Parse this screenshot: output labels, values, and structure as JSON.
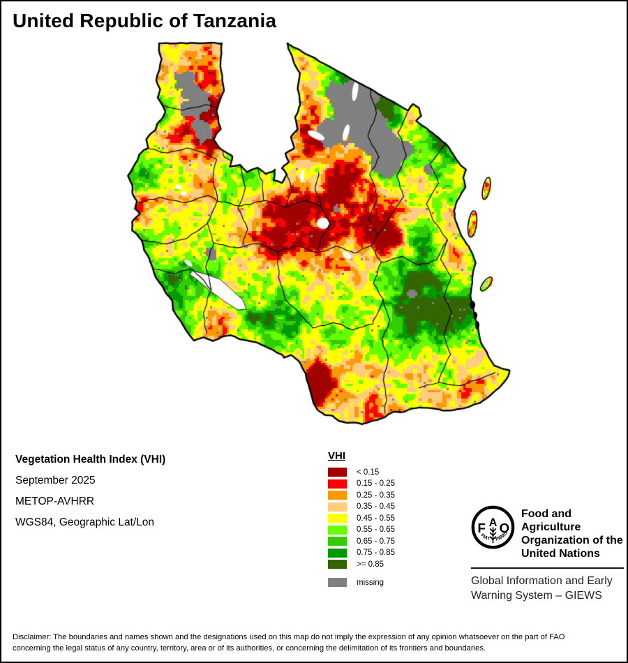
{
  "title": "United Republic of Tanzania",
  "info": {
    "line1": "Vegetation Health Index (VHI)",
    "line2": "September 2025",
    "line3": "METOP-AVHRR",
    "line4": "WGS84, Geographic Lat/Lon"
  },
  "legend": {
    "title": "VHI",
    "items": [
      {
        "label": "< 0.15",
        "color": "#A00000"
      },
      {
        "label": "0.15 - 0.25",
        "color": "#FF0000"
      },
      {
        "label": "0.25 - 0.35",
        "color": "#FF9900"
      },
      {
        "label": "0.35 - 0.45",
        "color": "#FFCC80"
      },
      {
        "label": "0.45 - 0.55",
        "color": "#FFFF00"
      },
      {
        "label": "0.55 - 0.65",
        "color": "#66FF00"
      },
      {
        "label": "0.65 - 0.75",
        "color": "#33CC00"
      },
      {
        "label": "0.75 - 0.85",
        "color": "#009900"
      },
      {
        "label": ">= 0.85",
        "color": "#336600"
      }
    ],
    "missing": {
      "label": "missing",
      "color": "#808080"
    }
  },
  "fao": {
    "logo_letters": [
      "F",
      "A",
      "O"
    ],
    "logo_motto_left": "FIAT",
    "logo_motto_right": "PANIS",
    "org_lines": [
      "Food and Agriculture",
      "Organization of the",
      "United Nations"
    ],
    "giews_lines": [
      "Global Information and Early",
      "Warning System – GIEWS"
    ]
  },
  "disclaimer": {
    "line1": "Disclaimer: The boundaries and names shown and the designations used on this map do not imply the expression of any opinion whatsoever on the part of FAO",
    "line2": "concerning the legal status of any country, territory, area or of its authorities, or concerning the delimitation of its frontiers and boundaries."
  },
  "map": {
    "palette": [
      "#A00000",
      "#FF0000",
      "#FF9900",
      "#FFCC80",
      "#FFFF00",
      "#66FF00",
      "#33CC00",
      "#009900",
      "#336600"
    ],
    "missing_color": "#808080",
    "thresholds": [
      0.1,
      0.19,
      0.3,
      0.4,
      0.53,
      0.65,
      0.77,
      0.875
    ],
    "outline": [
      [
        228,
        62
      ],
      [
        318,
        62
      ],
      [
        316,
        95
      ],
      [
        321,
        130
      ],
      [
        310,
        160
      ],
      [
        316,
        185
      ],
      [
        305,
        200
      ],
      [
        318,
        215
      ],
      [
        333,
        224
      ],
      [
        329,
        239
      ],
      [
        344,
        237
      ],
      [
        354,
        247
      ],
      [
        369,
        240
      ],
      [
        381,
        250
      ],
      [
        394,
        243
      ],
      [
        392,
        258
      ],
      [
        404,
        262
      ],
      [
        411,
        250
      ],
      [
        404,
        241
      ],
      [
        414,
        232
      ],
      [
        409,
        220
      ],
      [
        421,
        212
      ],
      [
        417,
        196
      ],
      [
        427,
        185
      ],
      [
        423,
        168
      ],
      [
        431,
        150
      ],
      [
        426,
        128
      ],
      [
        429,
        105
      ],
      [
        421,
        88
      ],
      [
        414,
        70
      ],
      [
        412,
        62
      ],
      [
        585,
        158
      ],
      [
        592,
        150
      ],
      [
        600,
        155
      ],
      [
        603,
        166
      ],
      [
        597,
        173
      ],
      [
        638,
        205
      ],
      [
        660,
        237
      ],
      [
        668,
        243
      ],
      [
        664,
        255
      ],
      [
        667,
        268
      ],
      [
        655,
        288
      ],
      [
        650,
        302
      ],
      [
        653,
        316
      ],
      [
        661,
        337
      ],
      [
        669,
        350
      ],
      [
        676,
        360
      ],
      [
        681,
        377
      ],
      [
        678,
        392
      ],
      [
        676,
        408
      ],
      [
        674,
        423
      ],
      [
        678,
        440
      ],
      [
        682,
        458
      ],
      [
        685,
        472
      ],
      [
        689,
        490
      ],
      [
        697,
        505
      ],
      [
        703,
        515
      ],
      [
        708,
        524
      ],
      [
        720,
        529
      ],
      [
        730,
        531
      ],
      [
        728,
        538
      ],
      [
        722,
        548
      ],
      [
        715,
        556
      ],
      [
        706,
        563
      ],
      [
        697,
        571
      ],
      [
        688,
        577
      ],
      [
        676,
        581
      ],
      [
        660,
        586
      ],
      [
        643,
        589
      ],
      [
        630,
        587
      ],
      [
        615,
        585
      ],
      [
        601,
        584
      ],
      [
        590,
        586
      ],
      [
        578,
        590
      ],
      [
        565,
        590
      ],
      [
        552,
        597
      ],
      [
        540,
        602
      ],
      [
        530,
        604
      ],
      [
        519,
        608
      ],
      [
        508,
        606
      ],
      [
        497,
        606
      ],
      [
        486,
        604
      ],
      [
        477,
        596
      ],
      [
        465,
        594
      ],
      [
        455,
        587
      ],
      [
        449,
        577
      ],
      [
        446,
        565
      ],
      [
        443,
        553
      ],
      [
        439,
        540
      ],
      [
        434,
        527
      ],
      [
        427,
        517
      ],
      [
        417,
        509
      ],
      [
        407,
        513
      ],
      [
        403,
        508
      ],
      [
        394,
        503
      ],
      [
        383,
        497
      ],
      [
        370,
        492
      ],
      [
        358,
        489
      ],
      [
        344,
        486
      ],
      [
        330,
        480
      ],
      [
        318,
        483
      ],
      [
        305,
        489
      ],
      [
        292,
        484
      ],
      [
        278,
        488
      ],
      [
        272,
        480
      ],
      [
        266,
        472
      ],
      [
        260,
        463
      ],
      [
        254,
        453
      ],
      [
        248,
        444
      ],
      [
        247,
        432
      ],
      [
        240,
        422
      ],
      [
        234,
        412
      ],
      [
        224,
        398
      ],
      [
        219,
        385
      ],
      [
        214,
        370
      ],
      [
        206,
        358
      ],
      [
        203,
        344
      ],
      [
        196,
        335
      ],
      [
        190,
        330
      ],
      [
        189,
        318
      ],
      [
        195,
        311
      ],
      [
        200,
        306
      ],
      [
        193,
        299
      ],
      [
        196,
        288
      ],
      [
        190,
        277
      ],
      [
        189,
        265
      ],
      [
        184,
        252
      ],
      [
        190,
        240
      ],
      [
        196,
        230
      ],
      [
        200,
        222
      ],
      [
        206,
        215
      ],
      [
        212,
        212
      ],
      [
        210,
        200
      ],
      [
        216,
        192
      ],
      [
        222,
        186
      ],
      [
        225,
        178
      ],
      [
        232,
        170
      ],
      [
        237,
        160
      ],
      [
        232,
        150
      ],
      [
        226,
        140
      ],
      [
        229,
        128
      ],
      [
        224,
        115
      ],
      [
        228,
        100
      ],
      [
        231,
        85
      ],
      [
        228,
        72
      ]
    ],
    "inner_boundaries": [
      [
        [
          230,
          150
        ],
        [
          262,
          158
        ],
        [
          295,
          150
        ],
        [
          316,
          156
        ]
      ],
      [
        [
          312,
          195
        ],
        [
          322,
          225
        ],
        [
          336,
          236
        ]
      ],
      [
        [
          212,
          212
        ],
        [
          240,
          220
        ],
        [
          268,
          212
        ],
        [
          296,
          220
        ],
        [
          310,
          228
        ]
      ],
      [
        [
          310,
          228
        ],
        [
          305,
          255
        ],
        [
          312,
          288
        ],
        [
          298,
          318
        ],
        [
          306,
          348
        ],
        [
          295,
          382
        ],
        [
          303,
          415
        ],
        [
          291,
          448
        ],
        [
          296,
          478
        ]
      ],
      [
        [
          196,
          290
        ],
        [
          232,
          283
        ],
        [
          266,
          291
        ],
        [
          298,
          280
        ],
        [
          312,
          288
        ]
      ],
      [
        [
          203,
          344
        ],
        [
          238,
          350
        ],
        [
          268,
          342
        ],
        [
          298,
          318
        ]
      ],
      [
        [
          219,
          385
        ],
        [
          248,
          392
        ],
        [
          275,
          385
        ],
        [
          303,
          415
        ]
      ],
      [
        [
          344,
          237
        ],
        [
          352,
          268
        ],
        [
          342,
          298
        ],
        [
          354,
          328
        ],
        [
          348,
          352
        ]
      ],
      [
        [
          312,
          288
        ],
        [
          345,
          295
        ],
        [
          378,
          287
        ],
        [
          410,
          296
        ],
        [
          438,
          288
        ],
        [
          460,
          296
        ]
      ],
      [
        [
          411,
          250
        ],
        [
          418,
          272
        ],
        [
          410,
          296
        ]
      ],
      [
        [
          457,
          247
        ],
        [
          452,
          272
        ],
        [
          460,
          296
        ]
      ],
      [
        [
          369,
          242
        ],
        [
          376,
          264
        ],
        [
          378,
          287
        ]
      ],
      [
        [
          306,
          348
        ],
        [
          338,
          356
        ],
        [
          368,
          348
        ],
        [
          398,
          360
        ],
        [
          428,
          352
        ],
        [
          455,
          362
        ],
        [
          482,
          354
        ],
        [
          508,
          362
        ],
        [
          532,
          352
        ]
      ],
      [
        [
          460,
          296
        ],
        [
          472,
          320
        ],
        [
          461,
          340
        ],
        [
          455,
          362
        ]
      ],
      [
        [
          530,
          250
        ],
        [
          541,
          284
        ],
        [
          529,
          314
        ],
        [
          541,
          338
        ],
        [
          532,
          352
        ],
        [
          546,
          376
        ],
        [
          536,
          406
        ],
        [
          549,
          430
        ]
      ],
      [
        [
          530,
          128
        ],
        [
          539,
          162
        ],
        [
          527,
          195
        ],
        [
          544,
          225
        ],
        [
          530,
          250
        ]
      ],
      [
        [
          585,
          160
        ],
        [
          571,
          190
        ],
        [
          583,
          222
        ],
        [
          569,
          252
        ],
        [
          578,
          282
        ],
        [
          560,
          310
        ],
        [
          541,
          338
        ]
      ],
      [
        [
          638,
          207
        ],
        [
          616,
          234
        ],
        [
          629,
          262
        ],
        [
          612,
          292
        ],
        [
          622,
          318
        ]
      ],
      [
        [
          622,
          318
        ],
        [
          641,
          344
        ],
        [
          631,
          372
        ],
        [
          646,
          396
        ],
        [
          636,
          424
        ],
        [
          648,
          448
        ]
      ],
      [
        [
          546,
          376
        ],
        [
          576,
          368
        ],
        [
          602,
          380
        ],
        [
          626,
          372
        ],
        [
          641,
          344
        ]
      ],
      [
        [
          549,
          430
        ],
        [
          559,
          458
        ],
        [
          547,
          486
        ],
        [
          557,
          514
        ],
        [
          549,
          544
        ],
        [
          553,
          572
        ],
        [
          552,
          592
        ]
      ],
      [
        [
          448,
          470
        ],
        [
          478,
          462
        ],
        [
          506,
          472
        ],
        [
          534,
          464
        ],
        [
          549,
          430
        ]
      ],
      [
        [
          398,
          360
        ],
        [
          400,
          398
        ],
        [
          408,
          428
        ],
        [
          430,
          450
        ],
        [
          448,
          470
        ]
      ],
      [
        [
          600,
          556
        ],
        [
          629,
          548
        ],
        [
          659,
          552
        ],
        [
          688,
          542
        ],
        [
          710,
          534
        ]
      ],
      [
        [
          648,
          448
        ],
        [
          636,
          478
        ],
        [
          646,
          508
        ],
        [
          632,
          534
        ],
        [
          629,
          548
        ]
      ]
    ],
    "lakes_ellipses": [
      [
        509,
        130,
        4,
        15,
        8
      ],
      [
        496,
        190,
        4,
        12,
        15
      ],
      [
        453,
        194,
        13,
        5,
        25
      ],
      [
        433,
        252,
        3,
        9,
        5
      ],
      [
        463,
        320,
        9,
        8,
        0
      ],
      [
        497,
        366,
        7,
        4,
        35
      ],
      [
        256,
        268,
        6,
        3,
        20
      ],
      [
        263,
        277,
        4,
        3,
        0
      ],
      [
        270,
        377,
        7,
        3,
        40
      ]
    ],
    "lake_polygons": [
      [
        [
          276,
          388
        ],
        [
          295,
          393
        ],
        [
          315,
          400
        ],
        [
          332,
          415
        ],
        [
          348,
          430
        ],
        [
          353,
          443
        ],
        [
          341,
          444
        ],
        [
          322,
          432
        ],
        [
          303,
          418
        ],
        [
          284,
          402
        ],
        [
          272,
          393
        ]
      ]
    ],
    "islands": [
      [
        697,
        270,
        5,
        16,
        12
      ],
      [
        677,
        321,
        6,
        19,
        8
      ],
      [
        697,
        407,
        5,
        12,
        38
      ]
    ],
    "delta_marks": [
      [
        677,
        437,
        4,
        6
      ],
      [
        681,
        452,
        3,
        5
      ],
      [
        684,
        466,
        3,
        6
      ]
    ],
    "missing_blobs": [
      [
        505,
        165,
        40
      ],
      [
        543,
        205,
        32
      ],
      [
        468,
        196,
        20
      ],
      [
        524,
        128,
        24
      ],
      [
        556,
        237,
        20
      ],
      [
        584,
        214,
        14
      ],
      [
        282,
        152,
        30
      ],
      [
        266,
        112,
        18
      ],
      [
        292,
        192,
        16
      ],
      [
        478,
        132,
        14
      ],
      [
        614,
        243,
        11
      ],
      [
        302,
        365,
        13
      ],
      [
        560,
        130,
        13
      ],
      [
        590,
        420,
        10
      ],
      [
        480,
        298,
        9
      ]
    ],
    "bias_bumps": [
      [
        580,
        148,
        85,
        0.34
      ],
      [
        505,
        98,
        45,
        0.22
      ],
      [
        360,
        245,
        42,
        0.16
      ],
      [
        300,
        398,
        55,
        0.2
      ],
      [
        252,
        472,
        48,
        0.18
      ],
      [
        458,
        452,
        45,
        0.22
      ],
      [
        590,
        415,
        65,
        0.28
      ],
      [
        608,
        468,
        55,
        0.2
      ],
      [
        662,
        425,
        35,
        0.16
      ],
      [
        630,
        228,
        32,
        0.14
      ],
      [
        232,
        330,
        30,
        0.12
      ],
      [
        680,
        332,
        25,
        0.12
      ],
      [
        408,
        458,
        30,
        0.15
      ],
      [
        545,
        120,
        30,
        0.15
      ],
      [
        298,
        178,
        45,
        -0.24
      ],
      [
        222,
        300,
        40,
        -0.22
      ],
      [
        430,
        200,
        40,
        -0.14
      ],
      [
        478,
        310,
        62,
        -0.3
      ],
      [
        556,
        328,
        48,
        -0.26
      ],
      [
        392,
        330,
        40,
        -0.2
      ],
      [
        462,
        550,
        55,
        -0.28
      ],
      [
        672,
        555,
        45,
        -0.3
      ],
      [
        352,
        505,
        38,
        -0.14
      ],
      [
        315,
        455,
        25,
        -0.2
      ],
      [
        588,
        168,
        17,
        -0.38
      ],
      [
        450,
        108,
        35,
        -0.16
      ],
      [
        655,
        390,
        22,
        -0.15
      ],
      [
        480,
        335,
        150,
        -0.1
      ],
      [
        530,
        560,
        120,
        -0.08
      ],
      [
        270,
        160,
        70,
        -0.08
      ],
      [
        430,
        280,
        35,
        -0.18
      ],
      [
        505,
        260,
        40,
        -0.15
      ]
    ]
  }
}
